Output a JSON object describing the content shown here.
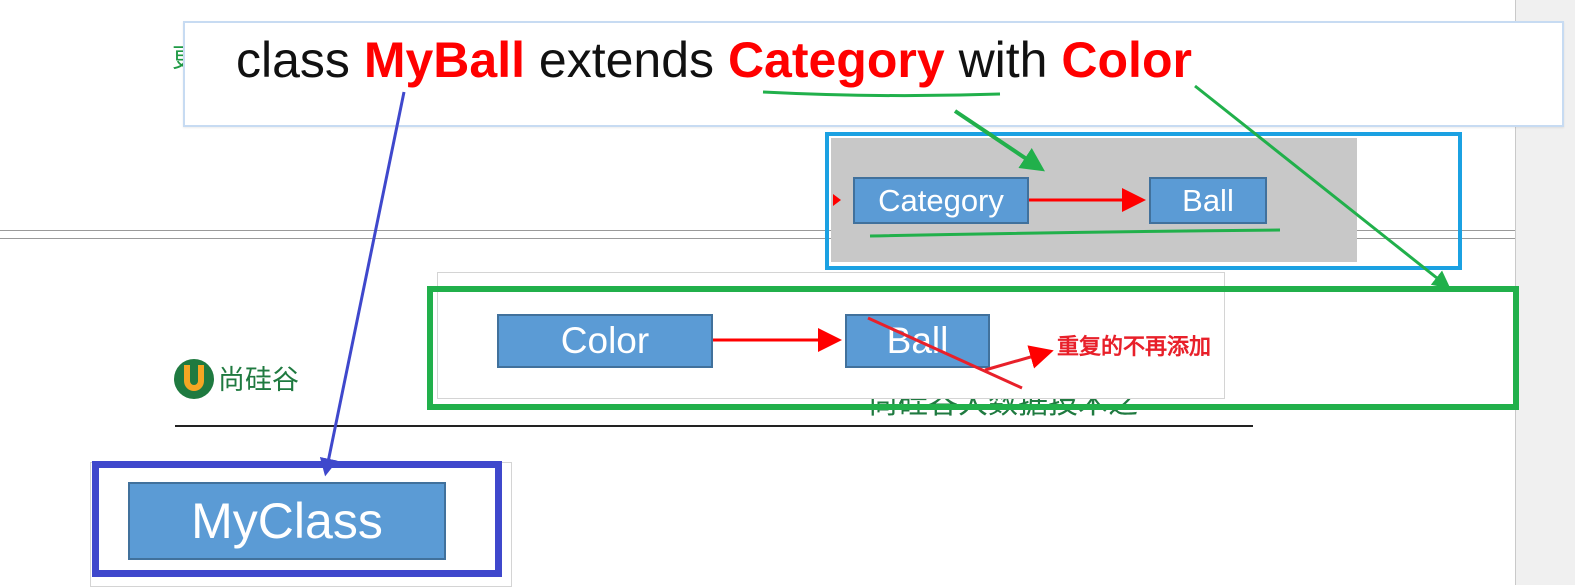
{
  "code": {
    "kw_class": "class",
    "name_myball": "MyBall",
    "kw_extends": "extends",
    "name_category": "Category",
    "kw_with": "with",
    "name_color": "Color"
  },
  "diagram": {
    "category_box": "Category",
    "ball_box_1": "Ball",
    "color_box": "Color",
    "ball_box_2": "Ball",
    "myclass_box": "MyClass",
    "duplicate_note": "重复的不再添加"
  },
  "background": {
    "logo_text": "尚硅谷",
    "top_char": "更",
    "footer_text": "尚硅谷大数据技术之"
  },
  "colors": {
    "highlight_red": "#ff0000",
    "arrow_green": "#21b04b",
    "frame_blue": "#1ba1e2",
    "frame_indigo": "#3f48cc",
    "box_blue": "#5b9bd5",
    "note_red": "#e8202a"
  }
}
